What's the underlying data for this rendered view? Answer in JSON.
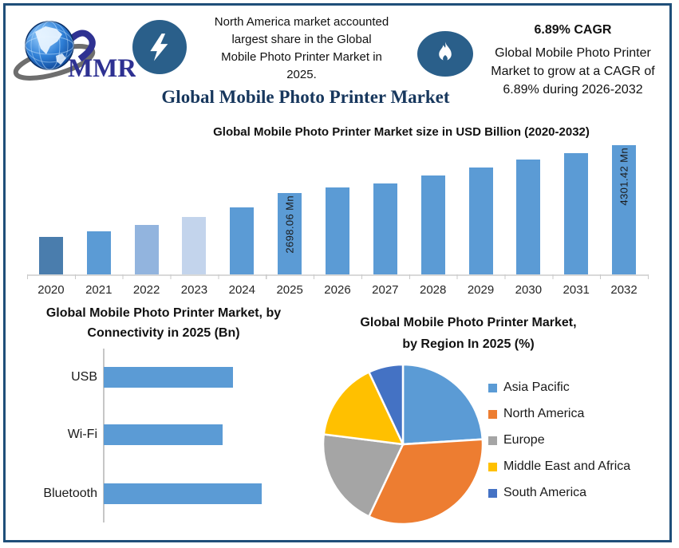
{
  "page": {
    "border_color": "#1F4E79",
    "background": "#FFFFFF"
  },
  "logo": {
    "text": "MMR",
    "text_color": "#2E3192"
  },
  "header": {
    "left_callout": {
      "icon": "lightning-icon",
      "lines": [
        "North America market accounted",
        "largest share in the Global",
        "Mobile Photo Printer Market in",
        "2025."
      ]
    },
    "right_callout": {
      "icon": "flame-icon",
      "title": "6.89% CAGR",
      "lines": [
        "Global Mobile Photo Printer",
        "Market to grow at a CAGR of",
        "6.89% during 2026-2032"
      ]
    },
    "main_title": "Global Mobile Photo Printer Market",
    "main_title_color": "#17375D",
    "icon_circle_color": "#2A5F8A"
  },
  "chart_data": [
    {
      "id": "market-size-bar-chart",
      "type": "bar",
      "title": "Global Mobile Photo Printer Market size in USD Billion (2020-2032)",
      "categories": [
        "2020",
        "2021",
        "2022",
        "2023",
        "2024",
        "2025",
        "2026",
        "2027",
        "2028",
        "2029",
        "2030",
        "2031",
        "2032"
      ],
      "values_usd_mn": [
        1250,
        1430,
        1640,
        1900,
        2215,
        2698.06,
        2890,
        3025,
        3285,
        3545,
        3805,
        4040,
        4301.42
      ],
      "data_labels": {
        "2025": "2698.06 Mn",
        "2032": "4301.42 Mn"
      },
      "bar_colors": [
        "#4A7DAD",
        "#5B9BD5",
        "#92B4DE",
        "#C3D4EC",
        "#5B9BD5",
        "#5B9BD5",
        "#5B9BD5",
        "#5B9BD5",
        "#5B9BD5",
        "#5B9BD5",
        "#5B9BD5",
        "#5B9BD5",
        "#5B9BD5"
      ],
      "ylim": [
        0,
        4450
      ],
      "grid": false,
      "legend": false
    },
    {
      "id": "connectivity-bar-chart",
      "type": "bar-horizontal",
      "title_lines": [
        "Global Mobile Photo Printer Market, by",
        "Connectivity in 2025 (Bn)"
      ],
      "categories": [
        "USB",
        "Wi-Fi",
        "Bluetooth"
      ],
      "values_relative": [
        0.82,
        0.75,
        1.0
      ],
      "bar_color": "#5B9BD5",
      "grid": false,
      "legend": false
    },
    {
      "id": "region-pie-chart",
      "type": "pie",
      "title_lines": [
        "Global Mobile Photo Printer Market,",
        "by Region In 2025 (%)"
      ],
      "labels": [
        "Asia Pacific",
        "North America",
        "Europe",
        "Middle East and Africa",
        "South America"
      ],
      "values_pct": [
        24,
        33,
        20,
        16,
        7
      ],
      "colors": [
        "#5B9BD5",
        "#ED7D31",
        "#A5A5A5",
        "#FFC000",
        "#4472C4"
      ],
      "legend_position": "right",
      "start_angle_deg": 0
    }
  ]
}
